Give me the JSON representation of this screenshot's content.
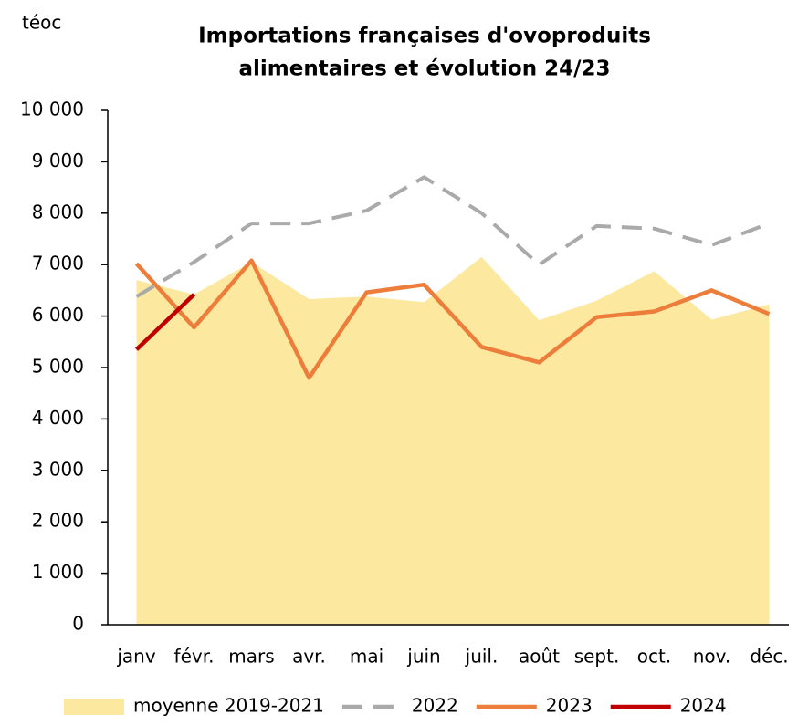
{
  "chart_data": {
    "type": "line",
    "title": [
      "Importations françaises d'ovoproduits",
      "alimentaires et évolution 24/23"
    ],
    "ylabel": "téoc",
    "categories": [
      "janv",
      "févr.",
      "mars",
      "avr.",
      "mai",
      "juin",
      "juil.",
      "août",
      "sept.",
      "oct.",
      "nov.",
      "déc."
    ],
    "series": [
      {
        "name": "moyenne 2019-2021",
        "color": "#fde8a0",
        "style": "area",
        "values": [
          6700,
          6420,
          7050,
          6330,
          6380,
          6270,
          7150,
          5920,
          6300,
          6870,
          5930,
          6230
        ]
      },
      {
        "name": "2022",
        "color": "#aaaaaa",
        "style": "dashed",
        "values": [
          6380,
          7050,
          7800,
          7800,
          8050,
          8700,
          8000,
          7000,
          7750,
          7700,
          7380,
          7800
        ]
      },
      {
        "name": "2023",
        "color": "#ec7d3b",
        "style": "solid",
        "values": [
          7020,
          5780,
          7080,
          4800,
          6460,
          6610,
          5400,
          5100,
          5980,
          6090,
          6500,
          6040
        ]
      },
      {
        "name": "2024",
        "color": "#c00000",
        "style": "solid",
        "values": [
          5350,
          6420,
          null,
          null,
          null,
          null,
          null,
          null,
          null,
          null,
          null,
          null
        ]
      }
    ],
    "ylim": [
      0,
      10000
    ],
    "yticks": [
      0,
      {
        "value": 1000,
        "label": "1 000"
      },
      {
        "value": 2000,
        "label": "2 000"
      },
      {
        "value": 3000,
        "label": "3 000"
      },
      {
        "value": 4000,
        "label": "4 000"
      },
      {
        "value": 5000,
        "label": "5 000"
      },
      {
        "value": 6000,
        "label": "6 000"
      },
      {
        "value": 7000,
        "label": "7 000"
      },
      {
        "value": 8000,
        "label": "8 000"
      },
      {
        "value": 9000,
        "label": "9 000"
      },
      {
        "value": 10000,
        "label": "10 000"
      }
    ],
    "legend": "bottom"
  }
}
